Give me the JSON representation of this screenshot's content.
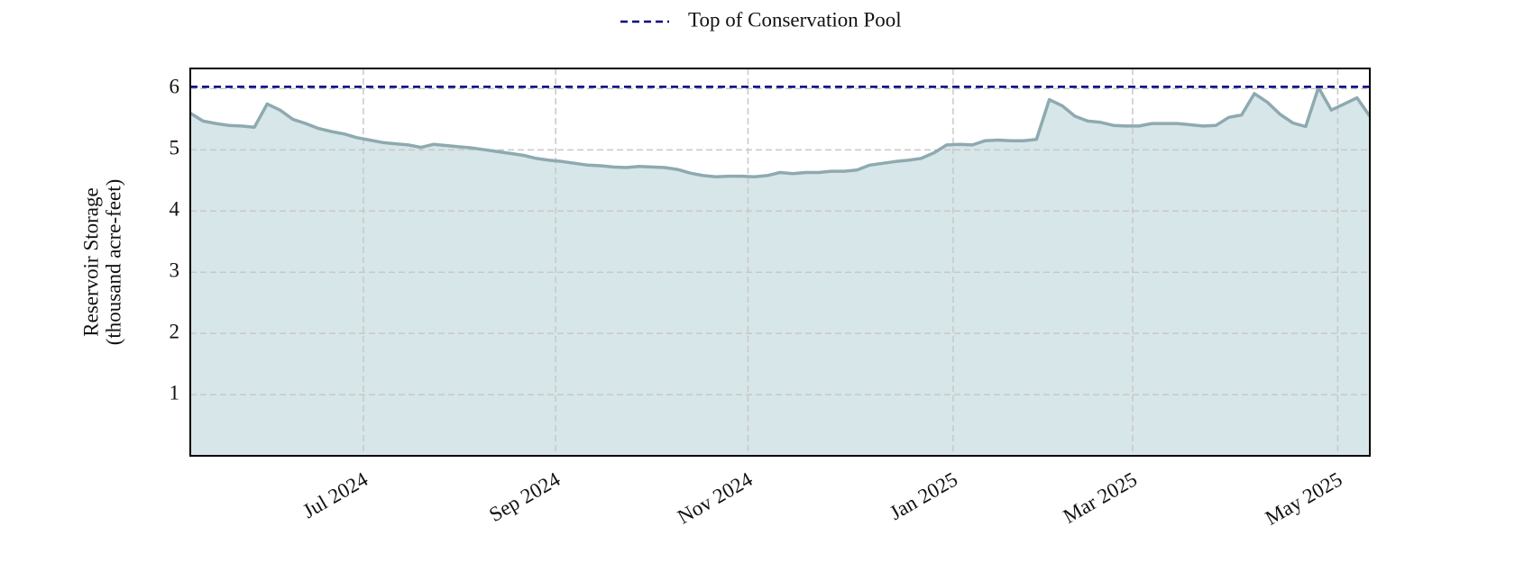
{
  "chart_data": {
    "type": "area",
    "ylabel": [
      "Reservoir Storage",
      "(thousand acre-feet)"
    ],
    "ylim": [
      0,
      6.33
    ],
    "yticks": [
      1,
      2,
      3,
      4,
      5,
      6
    ],
    "grid": true,
    "legend": "top",
    "x": [
      "2024-05",
      "2024-05",
      "2024-05",
      "2024-05",
      "2024-05",
      "2024-05",
      "2024-06",
      "2024-06",
      "2024-06",
      "2024-06",
      "2024-06",
      "2024-06",
      "2024-06",
      "2024-06",
      "2024-07",
      "2024-07",
      "2024-07",
      "2024-07",
      "2024-07",
      "2024-07",
      "2024-07",
      "2024-08",
      "2024-08",
      "2024-08",
      "2024-08",
      "2024-08",
      "2024-08",
      "2024-08",
      "2024-08",
      "2024-09",
      "2024-09",
      "2024-09",
      "2024-09",
      "2024-09",
      "2024-09",
      "2024-09",
      "2024-09",
      "2024-10",
      "2024-10",
      "2024-10",
      "2024-10",
      "2024-10",
      "2024-10",
      "2024-10",
      "2024-11",
      "2024-11",
      "2024-11",
      "2024-11",
      "2024-11",
      "2024-11",
      "2024-11",
      "2024-11",
      "2024-12",
      "2024-12",
      "2024-12",
      "2024-12",
      "2024-12",
      "2024-12",
      "2024-12",
      "2024-12",
      "2025-01",
      "2025-01",
      "2025-01",
      "2025-01",
      "2025-01",
      "2025-01",
      "2025-01",
      "2025-02",
      "2025-02",
      "2025-02",
      "2025-02",
      "2025-02",
      "2025-02",
      "2025-02",
      "2025-03",
      "2025-03",
      "2025-03",
      "2025-03",
      "2025-03",
      "2025-03",
      "2025-03",
      "2025-03",
      "2025-04",
      "2025-04",
      "2025-04",
      "2025-04",
      "2025-04",
      "2025-04",
      "2025-04",
      "2025-04",
      "2025-05",
      "2025-05",
      "2025-05"
    ],
    "xticks": [
      {
        "value": "2024-07",
        "label": "Jul 2024"
      },
      {
        "value": "2024-09",
        "label": "Sep 2024"
      },
      {
        "value": "2024-11",
        "label": "Nov 2024"
      },
      {
        "value": "2025-01",
        "label": "Jan 2025"
      },
      {
        "value": "2025-03",
        "label": "Mar 2025"
      },
      {
        "value": "2025-05",
        "label": "May 2025"
      }
    ],
    "series": [
      {
        "color": "#8eaab0",
        "fill_color": "#d7e6e8",
        "values": [
          5.6,
          5.47,
          5.43,
          5.4,
          5.39,
          5.37,
          5.75,
          5.65,
          5.5,
          5.43,
          5.35,
          5.3,
          5.26,
          5.2,
          5.16,
          5.12,
          5.1,
          5.08,
          5.04,
          5.09,
          5.07,
          5.05,
          5.03,
          5.0,
          4.97,
          4.94,
          4.91,
          4.86,
          4.83,
          4.81,
          4.78,
          4.75,
          4.74,
          4.72,
          4.71,
          4.73,
          4.72,
          4.71,
          4.68,
          4.62,
          4.58,
          4.56,
          4.57,
          4.57,
          4.56,
          4.58,
          4.63,
          4.61,
          4.63,
          4.63,
          4.65,
          4.65,
          4.67,
          4.75,
          4.78,
          4.81,
          4.83,
          4.86,
          4.95,
          5.08,
          5.09,
          5.08,
          5.15,
          5.16,
          5.15,
          5.15,
          5.17,
          5.82,
          5.72,
          5.55,
          5.47,
          5.45,
          5.4,
          5.39,
          5.39,
          5.43,
          5.43,
          5.43,
          5.41,
          5.39,
          5.4,
          5.53,
          5.57,
          5.92,
          5.78,
          5.58,
          5.44,
          5.38,
          6.02,
          5.65,
          5.75,
          5.85,
          5.55
        ]
      }
    ],
    "reference_lines": [
      {
        "name": "Top of Conservation Pool",
        "value": 6.03,
        "color": "#000080",
        "style": "dashed"
      }
    ]
  }
}
